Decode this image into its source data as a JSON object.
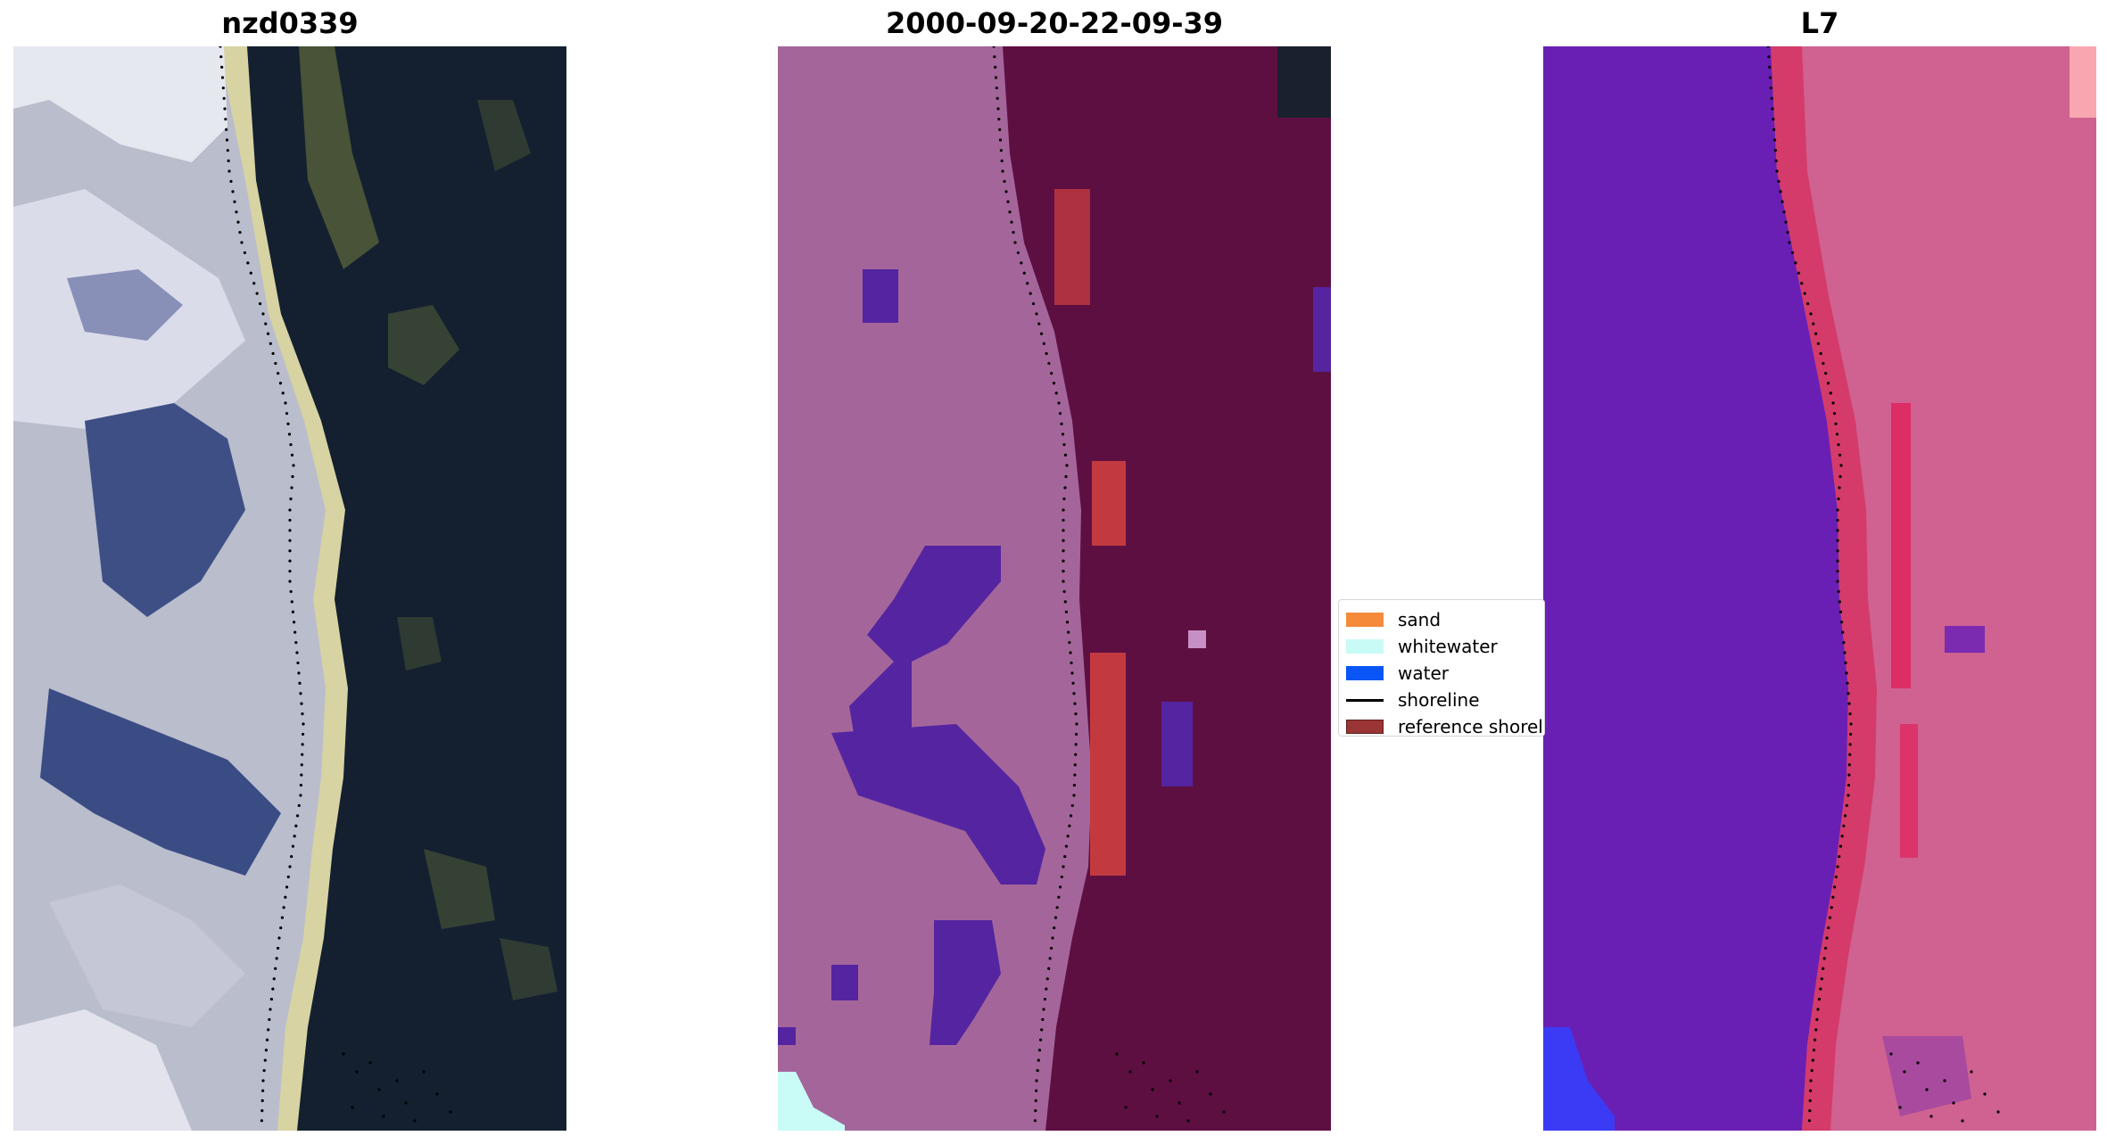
{
  "panels": [
    {
      "title": "nzd0339",
      "kind": "rgb"
    },
    {
      "title": "2000-09-20-22-09-39",
      "kind": "classified"
    },
    {
      "title": "L7",
      "kind": "ndwi"
    }
  ],
  "legend": {
    "items": [
      {
        "label": "sand",
        "color": "#f58b3a",
        "type": "patch"
      },
      {
        "label": "whitewater",
        "color": "#c8fbf5",
        "type": "patch"
      },
      {
        "label": "water",
        "color": "#0a55f5",
        "type": "patch"
      },
      {
        "label": "shoreline",
        "color": "#000000",
        "type": "line"
      },
      {
        "label": "reference shoreline",
        "color": "#9b3535",
        "type": "patch"
      }
    ]
  },
  "colors": {
    "rgb_land": "#c9ccd8",
    "rgb_sand": "#d8d4a6",
    "rgb_water": "#152030",
    "class_land": "#a4669a",
    "class_water": "#5e0f42",
    "class_sand": "#c23a3f",
    "class_purple": "#5524a1",
    "class_whitewater": "#c9fbf7",
    "ndwi_land": "#6a1fb4",
    "ndwi_water": "#d0628c",
    "ndwi_blue": "#3b3bf5"
  }
}
